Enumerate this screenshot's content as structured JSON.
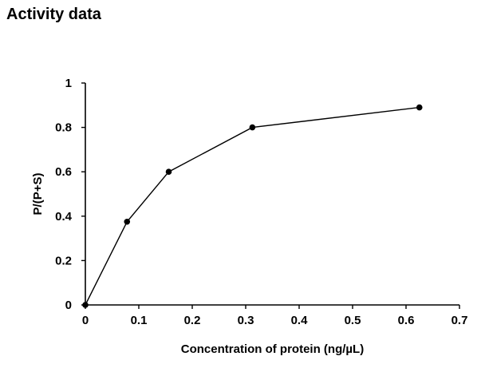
{
  "page": {
    "title": "Activity data"
  },
  "chart_data": {
    "type": "line",
    "title": "",
    "xlabel": "Concentration of protein (ng/µL)",
    "ylabel": "P/(P+S)",
    "xlim": [
      0,
      0.7
    ],
    "ylim": [
      0,
      1
    ],
    "x_ticks": [
      0,
      0.1,
      0.2,
      0.3,
      0.4,
      0.5,
      0.6,
      0.7
    ],
    "y_ticks": [
      0,
      0.2,
      0.4,
      0.6,
      0.8,
      1
    ],
    "x_tick_labels": [
      "0",
      "0.1",
      "0.2",
      "0.3",
      "0.4",
      "0.5",
      "0.6",
      "0.7"
    ],
    "y_tick_labels": [
      "0",
      "0.2",
      "0.4",
      "0.6",
      "0.8",
      "1"
    ],
    "grid": false,
    "legend": "none",
    "series": [
      {
        "x": [
          0,
          0.078,
          0.156,
          0.3125,
          0.625
        ],
        "y": [
          0,
          0.375,
          0.6,
          0.8,
          0.89
        ]
      }
    ],
    "colors": {
      "line": "#000000",
      "marker": "#000000",
      "axis": "#000000"
    }
  }
}
